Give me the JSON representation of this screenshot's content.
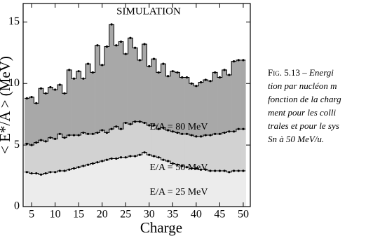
{
  "chart_data": {
    "type": "histogram",
    "title": "SIMULATION",
    "x_label": "Charge",
    "y_label": "< E*/A > (MeV)",
    "x": [
      4,
      5,
      6,
      7,
      8,
      9,
      10,
      11,
      12,
      13,
      14,
      15,
      16,
      17,
      18,
      19,
      20,
      21,
      22,
      23,
      24,
      25,
      26,
      27,
      28,
      29,
      30,
      31,
      32,
      33,
      34,
      35,
      36,
      37,
      38,
      39,
      40,
      41,
      42,
      43,
      44,
      45,
      46,
      47,
      48,
      49,
      50
    ],
    "series": [
      {
        "name": "E/A = 80 MeV",
        "color": "#a8a8a8",
        "values": [
          8.8,
          8.9,
          8.4,
          9.6,
          9.2,
          9.7,
          9.5,
          9.9,
          9.2,
          11.1,
          10.4,
          11.0,
          10.4,
          11.6,
          10.9,
          13.1,
          11.5,
          13.0,
          14.8,
          13.1,
          13.4,
          12.4,
          13.7,
          12.9,
          11.9,
          13.2,
          11.4,
          12.0,
          10.9,
          11.6,
          10.6,
          11.0,
          10.9,
          10.5,
          10.5,
          10.0,
          9.8,
          10.1,
          10.3,
          10.2,
          10.9,
          10.5,
          11.1,
          10.7,
          11.8,
          11.9,
          11.9
        ]
      },
      {
        "name": "E/A = 50 MeV",
        "color": "#d2d2d2",
        "values": [
          5.1,
          5.0,
          5.2,
          5.4,
          5.3,
          5.6,
          5.5,
          5.9,
          5.6,
          5.8,
          5.8,
          5.8,
          6.0,
          5.9,
          5.9,
          6.0,
          6.2,
          6.0,
          6.3,
          6.5,
          6.3,
          6.8,
          6.7,
          6.9,
          6.9,
          6.8,
          6.6,
          6.6,
          6.3,
          6.4,
          6.2,
          6.1,
          6.0,
          5.9,
          5.9,
          5.8,
          5.7,
          5.7,
          5.8,
          5.8,
          5.9,
          5.9,
          6.0,
          6.1,
          6.1,
          6.3,
          6.3
        ]
      },
      {
        "name": "E/A = 25 MeV",
        "color": "#ececec",
        "values": [
          2.8,
          2.7,
          2.7,
          2.6,
          2.7,
          2.8,
          2.8,
          2.9,
          2.9,
          3.0,
          3.1,
          3.2,
          3.3,
          3.4,
          3.5,
          3.6,
          3.7,
          3.8,
          3.9,
          3.9,
          4.0,
          4.0,
          4.1,
          4.1,
          4.2,
          4.4,
          4.2,
          4.1,
          4.0,
          3.8,
          3.7,
          3.5,
          3.4,
          3.3,
          3.2,
          3.1,
          3.1,
          3.0,
          3.0,
          2.9,
          2.9,
          2.9,
          2.9,
          2.8,
          2.9,
          2.9,
          2.9
        ]
      }
    ],
    "xlim": [
      3.2,
      51.5
    ],
    "ylim": [
      0,
      16.5
    ],
    "xticks": [
      5,
      10,
      15,
      20,
      25,
      30,
      35,
      40,
      45,
      50
    ],
    "yticks": [
      0,
      5,
      10,
      15
    ]
  },
  "caption": {
    "label": "Fig. 5.13",
    "lines": [
      "– Energi",
      "tion par nucléon m",
      "fonction de la charg",
      "ment pour les colli",
      "trales et pour le sys",
      "Sn à 50 MeV/u."
    ]
  }
}
